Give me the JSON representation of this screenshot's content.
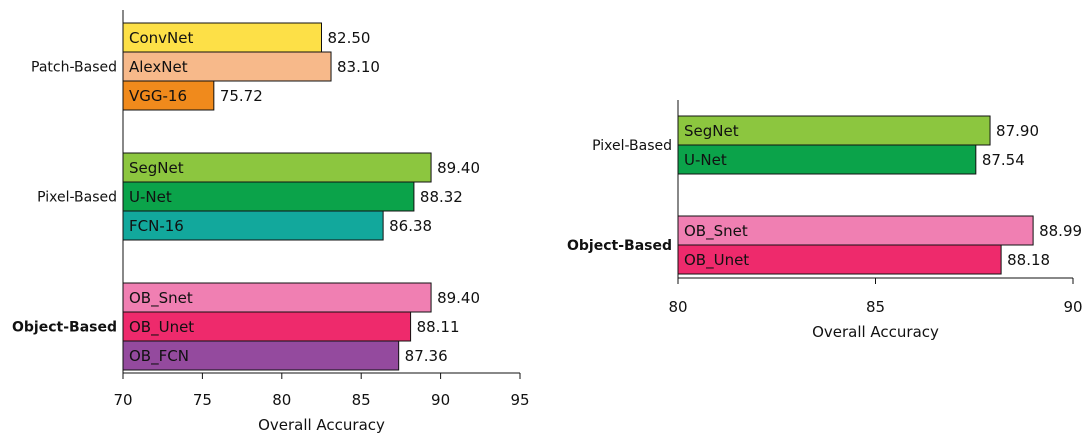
{
  "chart_data": [
    {
      "type": "bar",
      "orientation": "horizontal",
      "xlabel": "Overall Accuracy",
      "xlim": [
        70,
        95
      ],
      "xticks": [
        70,
        75,
        80,
        85,
        90,
        95
      ],
      "groups": [
        {
          "name": "Patch-Based",
          "bold": false,
          "bars": [
            {
              "label": "ConvNet",
              "value": 82.5,
              "value_label": "82.50",
              "color": "#FDE047"
            },
            {
              "label": "AlexNet",
              "value": 83.1,
              "value_label": "83.10",
              "color": "#F7B98A"
            },
            {
              "label": "VGG-16",
              "value": 75.72,
              "value_label": "75.72",
              "color": "#F08A1C"
            }
          ]
        },
        {
          "name": "Pixel-Based",
          "bold": false,
          "bars": [
            {
              "label": "SegNet",
              "value": 89.4,
              "value_label": "89.40",
              "color": "#8CC63F"
            },
            {
              "label": "U-Net",
              "value": 88.32,
              "value_label": "88.32",
              "color": "#0BA34A"
            },
            {
              "label": "FCN-16",
              "value": 86.38,
              "value_label": "86.38",
              "color": "#12A89C"
            }
          ]
        },
        {
          "name": "Object-Based",
          "bold": true,
          "bars": [
            {
              "label": "OB_Snet",
              "value": 89.4,
              "value_label": "89.40",
              "color": "#F07FB2"
            },
            {
              "label": "OB_Unet",
              "value": 88.11,
              "value_label": "88.11",
              "color": "#EE2A6C"
            },
            {
              "label": "OB_FCN",
              "value": 87.36,
              "value_label": "87.36",
              "color": "#944A9E"
            }
          ]
        }
      ]
    },
    {
      "type": "bar",
      "orientation": "horizontal",
      "xlabel": "Overall Accuracy",
      "xlim": [
        80,
        90
      ],
      "xticks": [
        80,
        85,
        90
      ],
      "groups": [
        {
          "name": "Pixel-Based",
          "bold": false,
          "bars": [
            {
              "label": "SegNet",
              "value": 87.9,
              "value_label": "87.90",
              "color": "#8CC63F"
            },
            {
              "label": "U-Net",
              "value": 87.54,
              "value_label": "87.54",
              "color": "#0BA34A"
            }
          ]
        },
        {
          "name": "Object-Based",
          "bold": true,
          "bars": [
            {
              "label": "OB_Snet",
              "value": 88.99,
              "value_label": "88.99",
              "color": "#F07FB2"
            },
            {
              "label": "OB_Unet",
              "value": 88.18,
              "value_label": "88.18",
              "color": "#EE2A6C"
            }
          ]
        }
      ]
    }
  ]
}
